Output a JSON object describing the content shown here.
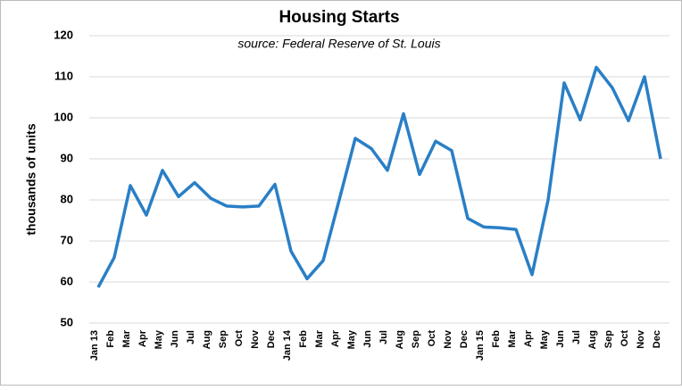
{
  "chart_data": {
    "type": "line",
    "title": "Housing Starts",
    "subtitle": "source:  Federal Reserve  of St. Louis",
    "y_label": "thousands of units",
    "categories": [
      "Jan 13",
      "Feb",
      "Mar",
      "Apr",
      "May",
      "Jun",
      "Jul",
      "Aug",
      "Sep",
      "Oct",
      "Nov",
      "Dec",
      "Jan 14",
      "Feb",
      "Mar",
      "Apr",
      "May",
      "Jun",
      "Jul",
      "Aug",
      "Sep",
      "Oct",
      "Nov",
      "Dec",
      "Jan 15",
      "Feb",
      "Mar",
      "Apr",
      "May",
      "Jun",
      "Jul",
      "Aug",
      "Sep",
      "Oct",
      "Nov",
      "Dec"
    ],
    "series": [
      {
        "name": "Housing Starts",
        "color": "#2a7fc6",
        "values": [
          58.7,
          66,
          83.5,
          76.3,
          87.2,
          80.8,
          84.2,
          80.4,
          78.5,
          78.3,
          78.5,
          83.8,
          67.5,
          60.8,
          65.2,
          80,
          95,
          92.5,
          87.2,
          101,
          86.2,
          94.3,
          92,
          75.5,
          73.4,
          73.2,
          72.8,
          61.8,
          80,
          108.5,
          99.5,
          112.3,
          107.3,
          99.3,
          110,
          90
        ]
      }
    ],
    "ylim": [
      50,
      120
    ],
    "yticks": [
      50,
      60,
      70,
      80,
      90,
      100,
      110,
      120
    ],
    "grid": true
  }
}
